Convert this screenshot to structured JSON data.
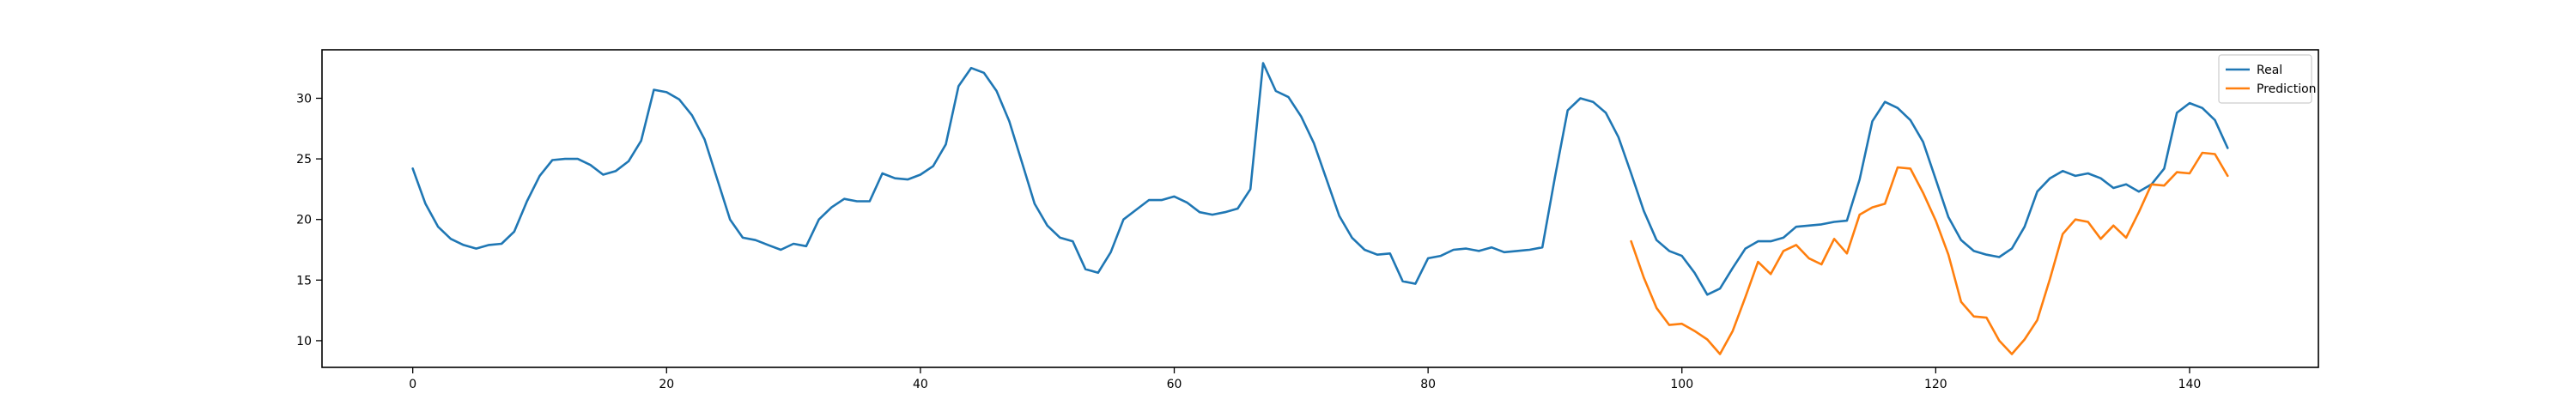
{
  "chart_data": {
    "type": "line",
    "title": "",
    "xlabel": "",
    "ylabel": "",
    "xlim": [
      -7.15,
      150.15
    ],
    "ylim": [
      7.8,
      34.0
    ],
    "xticks": [
      0,
      20,
      40,
      60,
      80,
      100,
      120,
      140
    ],
    "yticks": [
      10,
      15,
      20,
      25,
      30
    ],
    "grid": false,
    "legend_position": "top-right",
    "series": [
      {
        "name": "Real",
        "color": "#1f77b4",
        "x_start": 0,
        "values": [
          24.2,
          21.3,
          19.4,
          18.4,
          17.9,
          17.6,
          17.9,
          18.0,
          19.0,
          21.5,
          23.6,
          24.9,
          25.0,
          25.0,
          24.5,
          23.7,
          24.0,
          24.8,
          26.5,
          30.7,
          30.5,
          29.9,
          28.6,
          26.6,
          23.3,
          20.0,
          18.5,
          18.3,
          17.9,
          17.5,
          18.0,
          17.8,
          20.0,
          21.0,
          21.7,
          21.5,
          21.5,
          23.8,
          23.4,
          23.3,
          23.7,
          24.4,
          26.2,
          31.0,
          32.5,
          32.1,
          30.6,
          28.1,
          24.7,
          21.3,
          19.5,
          18.5,
          18.2,
          15.9,
          15.6,
          17.3,
          20.0,
          20.8,
          21.6,
          21.6,
          21.9,
          21.4,
          20.6,
          20.4,
          20.6,
          20.9,
          22.5,
          32.9,
          30.6,
          30.1,
          28.5,
          26.3,
          23.3,
          20.3,
          18.5,
          17.5,
          17.1,
          17.2,
          14.9,
          14.7,
          16.8,
          17.0,
          17.5,
          17.6,
          17.4,
          17.7,
          17.3,
          17.4,
          17.5,
          17.7,
          23.5,
          29.0,
          30.0,
          29.7,
          28.8,
          26.8,
          23.8,
          20.7,
          18.3,
          17.4,
          17.0,
          15.6,
          13.8,
          14.3,
          16.0,
          17.6,
          18.2,
          18.2,
          18.5,
          19.4,
          19.5,
          19.6,
          19.8,
          19.9,
          23.3,
          28.1,
          29.7,
          29.2,
          28.2,
          26.4,
          23.3,
          20.2,
          18.3,
          17.4,
          17.1,
          16.9,
          17.6,
          19.4,
          22.3,
          23.4,
          24.0,
          23.6,
          23.8,
          23.4,
          22.6,
          22.9,
          22.3,
          22.9,
          24.2,
          28.8,
          29.6,
          29.2,
          28.2,
          25.9
        ]
      },
      {
        "name": "Prediction",
        "color": "#ff7f0e",
        "x_start": 96,
        "values": [
          18.2,
          15.2,
          12.7,
          11.3,
          11.4,
          10.8,
          10.1,
          8.9,
          10.8,
          13.6,
          16.5,
          15.5,
          17.4,
          17.9,
          16.8,
          16.3,
          18.4,
          17.2,
          20.4,
          21.0,
          21.3,
          24.3,
          24.2,
          22.2,
          19.9,
          17.1,
          13.2,
          12.0,
          11.9,
          10.0,
          8.9,
          10.1,
          11.7,
          15.1,
          18.8,
          20.0,
          19.8,
          18.4,
          19.5,
          18.5,
          20.6,
          22.9,
          22.8,
          23.9,
          23.8,
          25.5,
          25.4,
          23.6
        ]
      }
    ]
  }
}
